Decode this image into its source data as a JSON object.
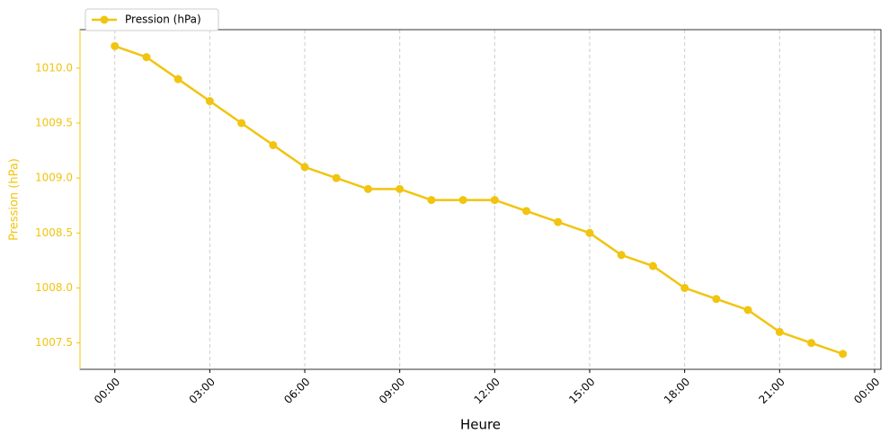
{
  "chart_data": {
    "type": "line",
    "x": [
      0,
      1,
      2,
      3,
      4,
      5,
      6,
      7,
      8,
      9,
      10,
      11,
      12,
      13,
      14,
      15,
      16,
      17,
      18,
      19,
      20,
      21,
      22,
      23
    ],
    "xlabel": "Heure",
    "ylabel": "Pression (hPa)",
    "series": [
      {
        "name": "Pression (hPa)",
        "color": "#f1c40f",
        "values": [
          1010.2,
          1010.1,
          1009.9,
          1009.7,
          1009.5,
          1009.3,
          1009.1,
          1009.0,
          1008.9,
          1008.9,
          1008.8,
          1008.8,
          1008.8,
          1008.7,
          1008.6,
          1008.5,
          1008.3,
          1008.2,
          1008.0,
          1007.9,
          1007.8,
          1007.6,
          1007.5,
          1007.4
        ]
      }
    ],
    "xlim": [
      -1.1,
      24.2
    ],
    "xticks": [
      {
        "value": 0,
        "label": "00:00"
      },
      {
        "value": 3,
        "label": "03:00"
      },
      {
        "value": 6,
        "label": "06:00"
      },
      {
        "value": 9,
        "label": "09:00"
      },
      {
        "value": 12,
        "label": "12:00"
      },
      {
        "value": 15,
        "label": "15:00"
      },
      {
        "value": 18,
        "label": "18:00"
      },
      {
        "value": 21,
        "label": "21:00"
      },
      {
        "value": 24,
        "label": "00:00"
      }
    ],
    "ylim": [
      1007.26,
      1010.35
    ],
    "yticks": [
      1007.5,
      {
        "value": 1008,
        "label": "1008.0"
      },
      1008.5,
      {
        "value": 1009,
        "label": "1009.0"
      },
      1009.5,
      {
        "value": 1010,
        "label": "1010.0"
      }
    ],
    "grid": "x",
    "legend": "upper left"
  }
}
